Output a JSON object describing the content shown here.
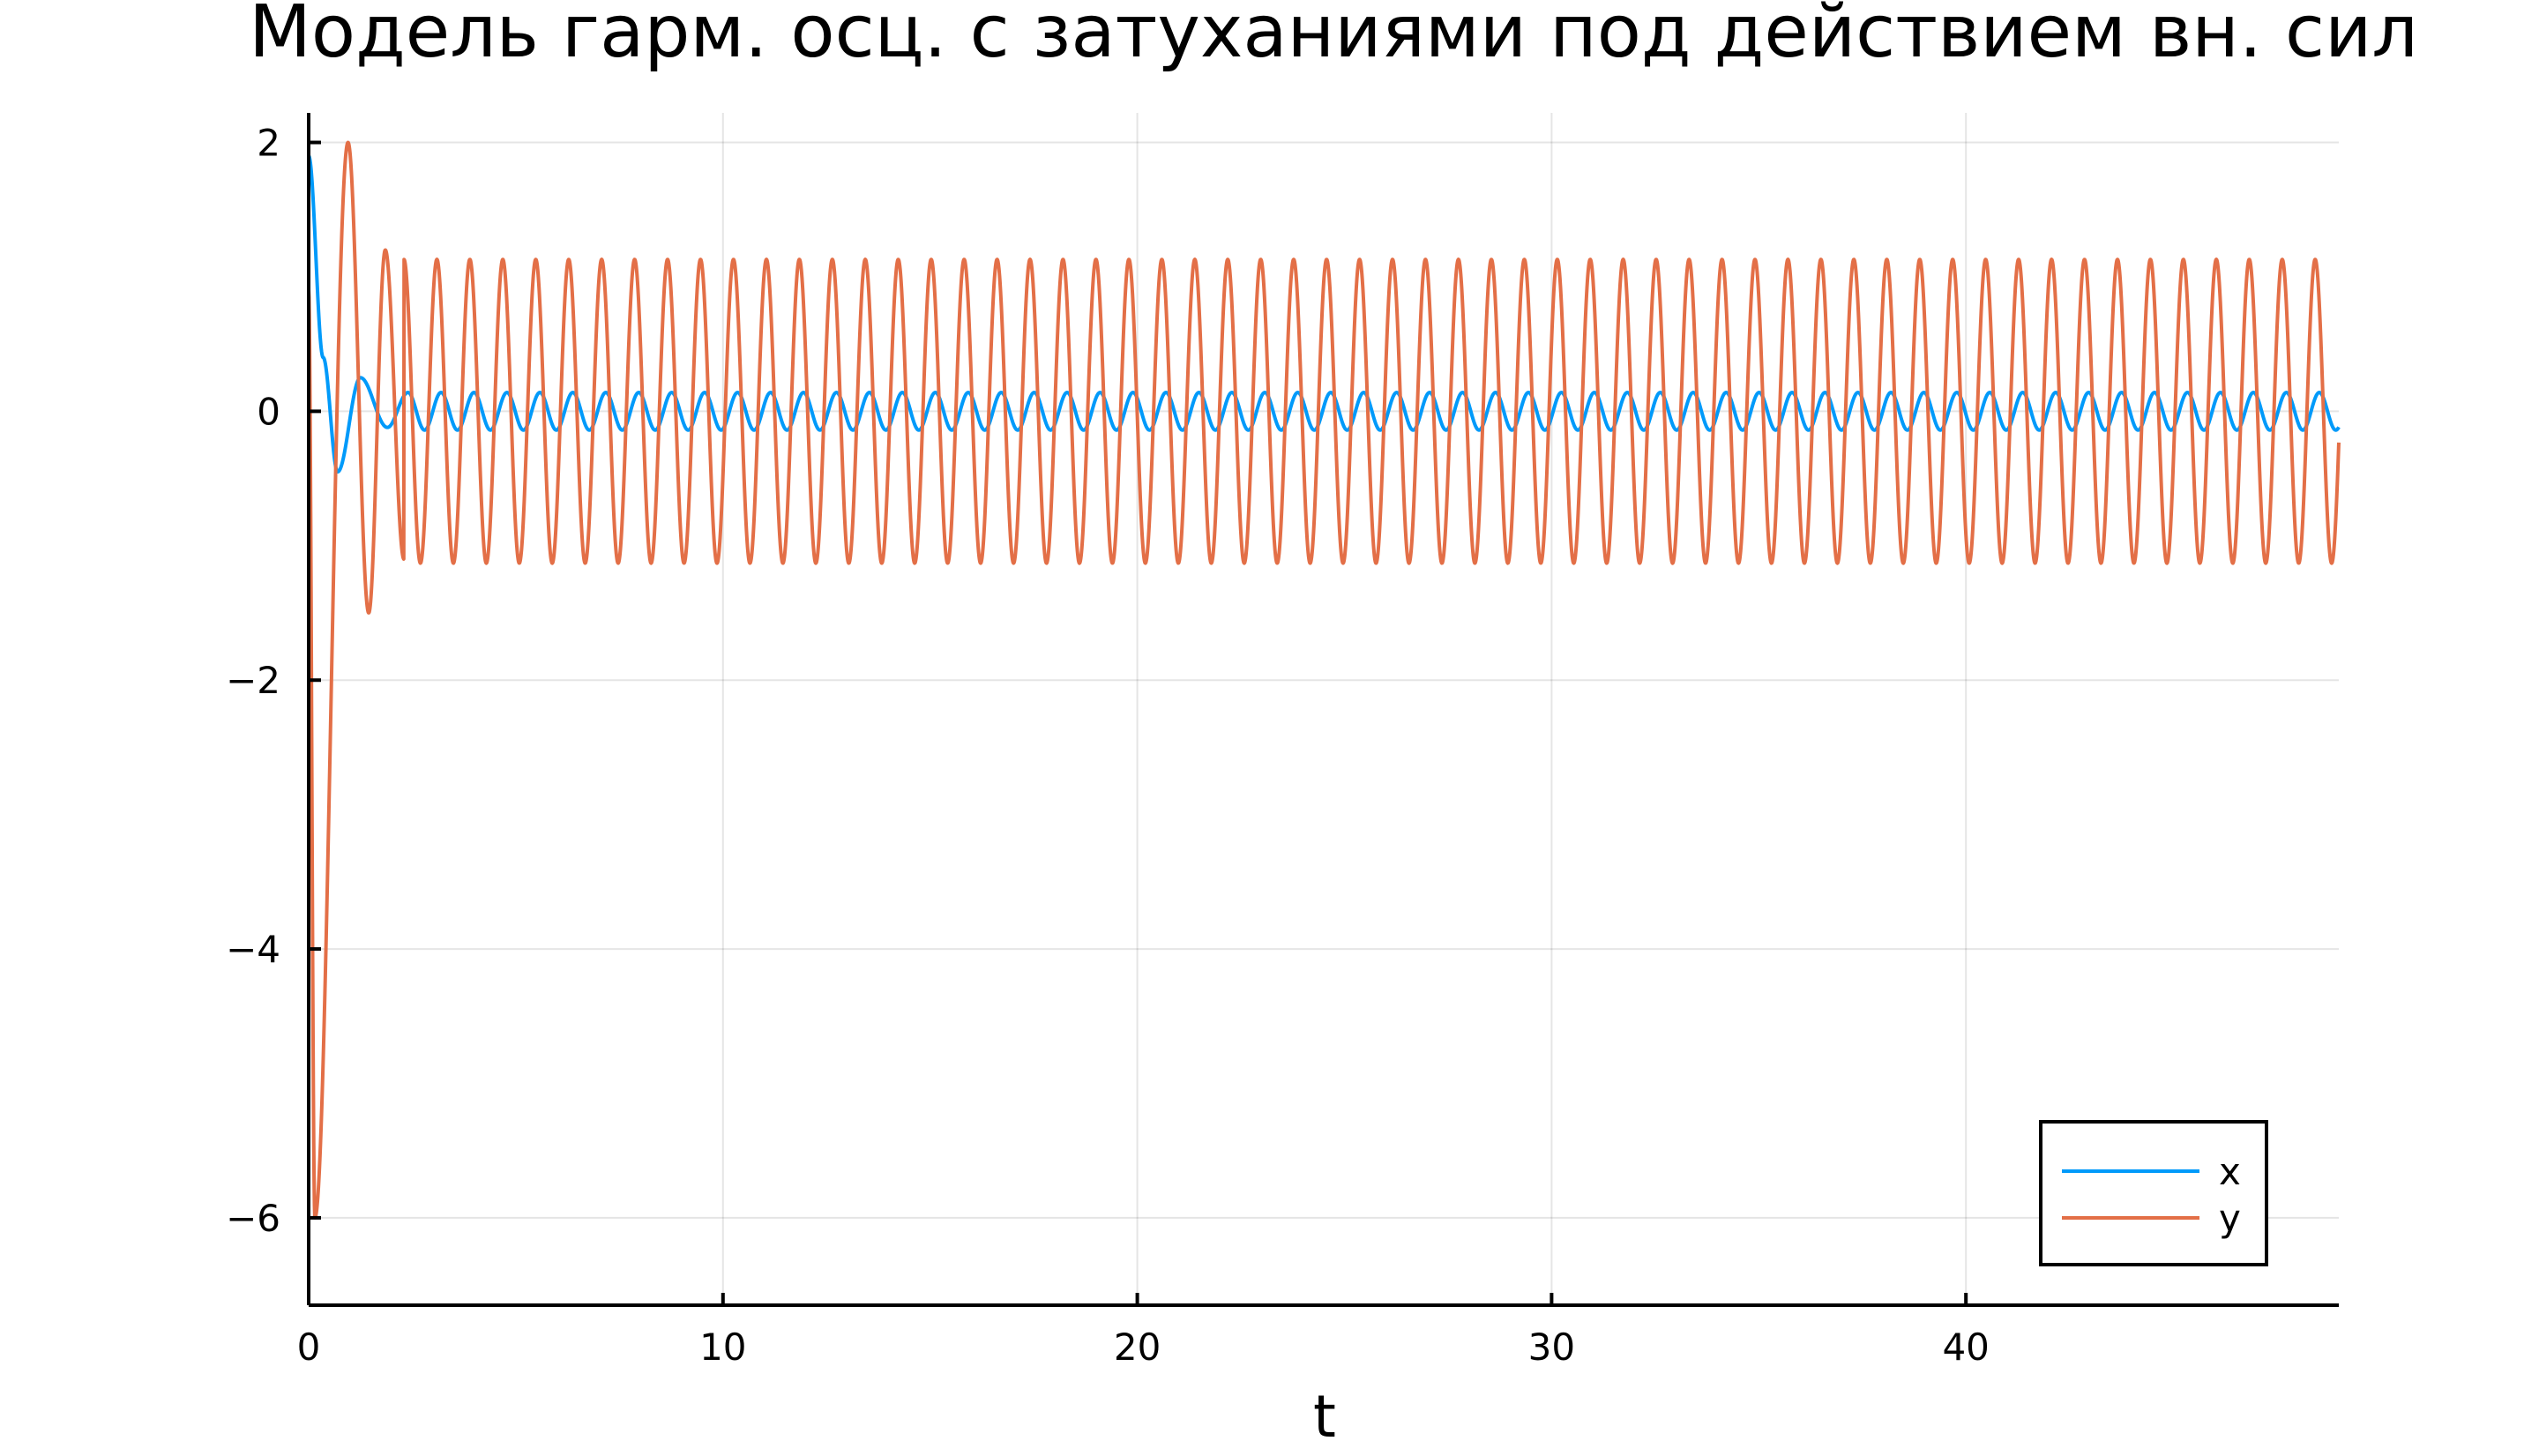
{
  "chart_data": {
    "type": "line",
    "title": "Модель гарм. осц. с затуханиями под действием вн. сил",
    "xlabel": "t",
    "ylabel": "",
    "xlim": [
      0,
      49
    ],
    "ylim": [
      -6.65,
      2.22
    ],
    "xticks": [
      0,
      10,
      20,
      30,
      40
    ],
    "xtick_labels": [
      "0",
      "10",
      "20",
      "30",
      "40"
    ],
    "yticks": [
      2,
      0,
      -2,
      -4,
      -6
    ],
    "ytick_labels": [
      "2",
      "0",
      "−2",
      "−4",
      "−6"
    ],
    "grid": true,
    "legend_position": "bottom-right",
    "series": [
      {
        "name": "x",
        "color": "#009AFA",
        "description_points": [
          [
            0,
            1.9
          ],
          [
            0.35,
            0.4
          ],
          [
            0.7,
            -0.45
          ],
          [
            1.25,
            0.25
          ],
          [
            1.9,
            -0.12
          ],
          [
            2.4,
            0.14
          ]
        ],
        "steady_amplitude": 0.14,
        "angular_frequency": 7.9
      },
      {
        "name": "y",
        "color": "#E36F47",
        "description_points": [
          [
            0,
            0.9
          ],
          [
            0.15,
            -6.0
          ],
          [
            0.95,
            2.0
          ],
          [
            1.45,
            -1.5
          ],
          [
            1.85,
            1.2
          ],
          [
            2.3,
            -1.1
          ]
        ],
        "steady_amplitude": 1.13,
        "angular_frequency": 7.9
      }
    ]
  }
}
